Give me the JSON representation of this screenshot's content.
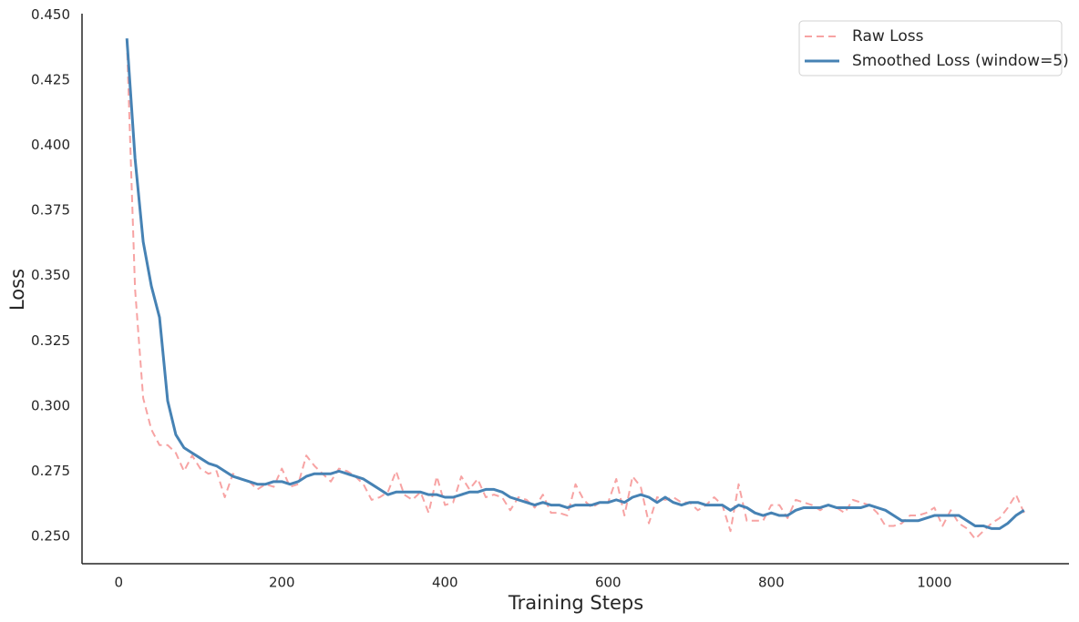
{
  "chart_data": {
    "type": "line",
    "xlabel": "Training Steps",
    "ylabel": "Loss",
    "x": [
      10,
      20,
      30,
      40,
      50,
      60,
      70,
      80,
      90,
      100,
      110,
      120,
      130,
      140,
      150,
      160,
      170,
      180,
      190,
      200,
      210,
      220,
      230,
      240,
      250,
      260,
      270,
      280,
      290,
      300,
      310,
      320,
      330,
      340,
      350,
      360,
      370,
      380,
      390,
      400,
      410,
      420,
      430,
      440,
      450,
      460,
      470,
      480,
      490,
      500,
      510,
      520,
      530,
      540,
      550,
      560,
      570,
      580,
      590,
      600,
      610,
      620,
      630,
      640,
      650,
      660,
      670,
      680,
      690,
      700,
      710,
      720,
      730,
      740,
      750,
      760,
      770,
      780,
      790,
      800,
      810,
      820,
      830,
      840,
      850,
      860,
      870,
      880,
      890,
      900,
      910,
      920,
      930,
      940,
      950,
      960,
      970,
      980,
      990,
      1000,
      1010,
      1020,
      1030,
      1040,
      1050,
      1060,
      1070,
      1080,
      1090,
      1100,
      1110
    ],
    "series": [
      {
        "name": "Raw Loss",
        "color": "#f7a3a3",
        "linestyle": "dashed",
        "linewidth": 2,
        "values": [
          0.44,
          0.345,
          0.303,
          0.291,
          0.285,
          0.285,
          0.282,
          0.275,
          0.281,
          0.276,
          0.274,
          0.275,
          0.265,
          0.274,
          0.272,
          0.271,
          0.268,
          0.27,
          0.269,
          0.276,
          0.269,
          0.27,
          0.281,
          0.277,
          0.274,
          0.271,
          0.276,
          0.275,
          0.273,
          0.27,
          0.264,
          0.265,
          0.267,
          0.275,
          0.266,
          0.264,
          0.267,
          0.259,
          0.273,
          0.262,
          0.263,
          0.273,
          0.268,
          0.272,
          0.265,
          0.266,
          0.265,
          0.26,
          0.265,
          0.264,
          0.261,
          0.266,
          0.259,
          0.259,
          0.258,
          0.27,
          0.264,
          0.261,
          0.263,
          0.263,
          0.272,
          0.258,
          0.273,
          0.269,
          0.255,
          0.265,
          0.264,
          0.265,
          0.263,
          0.263,
          0.26,
          0.262,
          0.265,
          0.262,
          0.252,
          0.27,
          0.256,
          0.256,
          0.256,
          0.262,
          0.262,
          0.257,
          0.264,
          0.263,
          0.262,
          0.26,
          0.262,
          0.261,
          0.259,
          0.264,
          0.263,
          0.262,
          0.259,
          0.254,
          0.254,
          0.255,
          0.258,
          0.258,
          0.259,
          0.261,
          0.254,
          0.26,
          0.255,
          0.253,
          0.249,
          0.252,
          0.255,
          0.257,
          0.261,
          0.266,
          0.259
        ]
      },
      {
        "name": "Smoothed Loss (window=5)",
        "color": "#4682b4",
        "linestyle": "solid",
        "linewidth": 3,
        "values": [
          0.441,
          0.395,
          0.363,
          0.346,
          0.334,
          0.302,
          0.289,
          0.284,
          0.282,
          0.28,
          0.278,
          0.277,
          0.275,
          0.273,
          0.272,
          0.271,
          0.27,
          0.27,
          0.271,
          0.271,
          0.27,
          0.271,
          0.273,
          0.274,
          0.274,
          0.274,
          0.275,
          0.274,
          0.273,
          0.272,
          0.27,
          0.268,
          0.266,
          0.267,
          0.267,
          0.267,
          0.267,
          0.266,
          0.266,
          0.265,
          0.265,
          0.266,
          0.267,
          0.267,
          0.268,
          0.268,
          0.267,
          0.265,
          0.264,
          0.263,
          0.262,
          0.263,
          0.262,
          0.262,
          0.261,
          0.262,
          0.262,
          0.262,
          0.263,
          0.263,
          0.264,
          0.263,
          0.265,
          0.266,
          0.265,
          0.263,
          0.265,
          0.263,
          0.262,
          0.263,
          0.263,
          0.262,
          0.262,
          0.262,
          0.26,
          0.262,
          0.261,
          0.259,
          0.258,
          0.259,
          0.258,
          0.258,
          0.26,
          0.261,
          0.261,
          0.261,
          0.262,
          0.261,
          0.261,
          0.261,
          0.261,
          0.262,
          0.261,
          0.26,
          0.258,
          0.256,
          0.256,
          0.256,
          0.257,
          0.258,
          0.258,
          0.258,
          0.258,
          0.256,
          0.254,
          0.254,
          0.253,
          0.253,
          0.255,
          0.258,
          0.26
        ]
      }
    ],
    "xlim": [
      -45,
      1165
    ],
    "xticks": [
      0,
      200,
      400,
      600,
      800,
      1000
    ],
    "ylim": [
      0.2395,
      0.4505
    ],
    "yticks": [
      {
        "value": 0.25,
        "label": "0.250"
      },
      0.275,
      {
        "value": 0.3,
        "label": "0.300"
      },
      0.325,
      {
        "value": 0.35,
        "label": "0.350"
      },
      0.375,
      {
        "value": 0.4,
        "label": "0.400"
      },
      0.425,
      {
        "value": 0.45,
        "label": "0.450"
      }
    ],
    "grid": false,
    "legend": "upper right"
  }
}
